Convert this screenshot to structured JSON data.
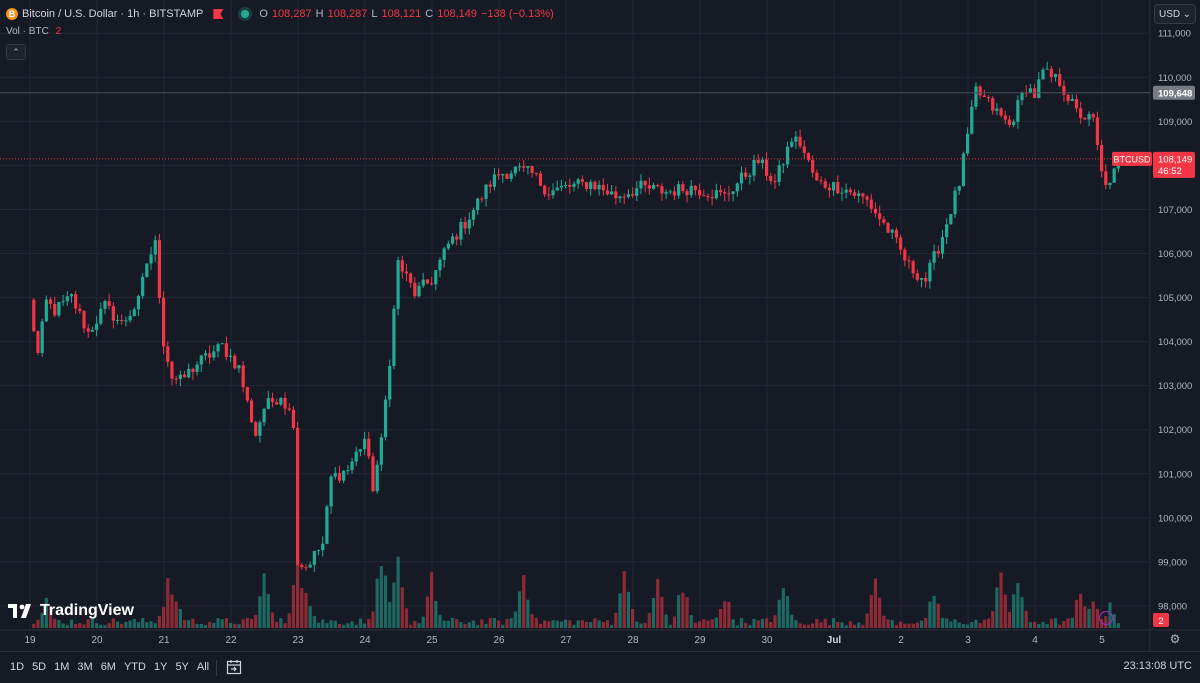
{
  "header": {
    "symbol_title": "Bitcoin / U.S. Dollar · 1h · BITSTAMP",
    "coin_glyph": "B",
    "o_label": "O",
    "o_value": "108,287",
    "h_label": "H",
    "h_value": "108,287",
    "l_label": "L",
    "l_value": "108,121",
    "c_label": "C",
    "c_value": "108,149",
    "change": "−138 (−0.13%)"
  },
  "volume_legend": {
    "label": "Vol · BTC",
    "value": "2"
  },
  "currency": {
    "label": "USD"
  },
  "tools": {
    "collapse_glyph": "⌃",
    "currency_chevron": "⌄",
    "settings_glyph": "⚙"
  },
  "bottom": {
    "ranges": [
      "1D",
      "5D",
      "1M",
      "3M",
      "6M",
      "YTD",
      "1Y",
      "5Y",
      "All"
    ],
    "time": "23:13:08 UTC"
  },
  "logo": {
    "text": "TradingView"
  },
  "colors": {
    "up": "#22ab94",
    "down": "#f23645",
    "background": "#161a25",
    "grid": "#232734",
    "text": "#b2b5be"
  },
  "chart_data": {
    "type": "candlestick",
    "title": "Bitcoin / U.S. Dollar · 1h · BITSTAMP",
    "y_axis": {
      "ticks": [
        98000,
        99000,
        100000,
        101000,
        102000,
        103000,
        104000,
        105000,
        106000,
        107000,
        108000,
        109000,
        110000,
        111000
      ],
      "tick_labels": [
        "98,000",
        "99,000",
        "100,000",
        "101,000",
        "102,000",
        "103,000",
        "104,000",
        "105,000",
        "106,000",
        "107,000",
        "108,000",
        "109,000",
        "110,000",
        "111,000"
      ],
      "range": [
        97500,
        111300
      ],
      "side": "right"
    },
    "x_axis": {
      "ticks": [
        0,
        16,
        32,
        48,
        64,
        80,
        96,
        112,
        128,
        144,
        160,
        176,
        192,
        208,
        224,
        240
      ],
      "tick_labels": [
        "19",
        "20",
        "21",
        "22",
        "23",
        "24",
        "25",
        "26",
        "27",
        "28",
        "29",
        "30",
        "Jul",
        "2",
        "3",
        "4"
      ],
      "extra_tick": {
        "bar": 256,
        "label": "5"
      }
    },
    "bars_total": 260,
    "price_path": [
      [
        0,
        104900
      ],
      [
        1,
        104300
      ],
      [
        2,
        103700
      ],
      [
        4,
        104900
      ],
      [
        6,
        104700
      ],
      [
        10,
        105000
      ],
      [
        14,
        104200
      ],
      [
        18,
        104800
      ],
      [
        22,
        104400
      ],
      [
        26,
        104900
      ],
      [
        28,
        105800
      ],
      [
        30,
        106200
      ],
      [
        32,
        104000
      ],
      [
        34,
        103200
      ],
      [
        36,
        103100
      ],
      [
        40,
        103500
      ],
      [
        46,
        103900
      ],
      [
        50,
        103400
      ],
      [
        52,
        102600
      ],
      [
        54,
        101900
      ],
      [
        56,
        102500
      ],
      [
        60,
        102800
      ],
      [
        63,
        102200
      ],
      [
        64,
        99000
      ],
      [
        66,
        98900
      ],
      [
        70,
        99400
      ],
      [
        72,
        100900
      ],
      [
        76,
        101100
      ],
      [
        80,
        101800
      ],
      [
        82,
        100700
      ],
      [
        84,
        101700
      ],
      [
        86,
        103600
      ],
      [
        88,
        105800
      ],
      [
        92,
        105100
      ],
      [
        96,
        105400
      ],
      [
        100,
        106200
      ],
      [
        104,
        106700
      ],
      [
        110,
        107600
      ],
      [
        112,
        107800
      ],
      [
        116,
        107900
      ],
      [
        120,
        107800
      ],
      [
        124,
        107400
      ],
      [
        128,
        107500
      ],
      [
        134,
        107600
      ],
      [
        140,
        107300
      ],
      [
        146,
        107500
      ],
      [
        152,
        107400
      ],
      [
        158,
        107500
      ],
      [
        166,
        107300
      ],
      [
        174,
        108100
      ],
      [
        178,
        107600
      ],
      [
        182,
        108600
      ],
      [
        184,
        108500
      ],
      [
        188,
        107600
      ],
      [
        194,
        107500
      ],
      [
        200,
        107200
      ],
      [
        206,
        106400
      ],
      [
        210,
        105700
      ],
      [
        214,
        105400
      ],
      [
        218,
        106400
      ],
      [
        222,
        107600
      ],
      [
        226,
        109700
      ],
      [
        230,
        109300
      ],
      [
        234,
        108900
      ],
      [
        238,
        109800
      ],
      [
        240,
        109600
      ],
      [
        242,
        110100
      ],
      [
        246,
        109900
      ],
      [
        250,
        109200
      ],
      [
        254,
        109000
      ],
      [
        256,
        107800
      ],
      [
        258,
        107500
      ],
      [
        260,
        108149
      ]
    ],
    "last_price": {
      "label": "BTCUSD",
      "value": "108,149",
      "countdown": "46:52"
    },
    "marked_level": {
      "value": "109,648"
    },
    "volume": {
      "series_name": "Vol · BTC",
      "last_value": "2",
      "spikes": [
        [
          4,
          14
        ],
        [
          33,
          20
        ],
        [
          35,
          15
        ],
        [
          56,
          24
        ],
        [
          64,
          28
        ],
        [
          66,
          20
        ],
        [
          84,
          34
        ],
        [
          88,
          30
        ],
        [
          96,
          22
        ],
        [
          118,
          26
        ],
        [
          142,
          26
        ],
        [
          150,
          22
        ],
        [
          156,
          20
        ],
        [
          166,
          16
        ],
        [
          180,
          20
        ],
        [
          202,
          22
        ],
        [
          216,
          16
        ],
        [
          232,
          26
        ],
        [
          236,
          24
        ],
        [
          251,
          18
        ],
        [
          254,
          14
        ],
        [
          258,
          10
        ]
      ]
    }
  }
}
